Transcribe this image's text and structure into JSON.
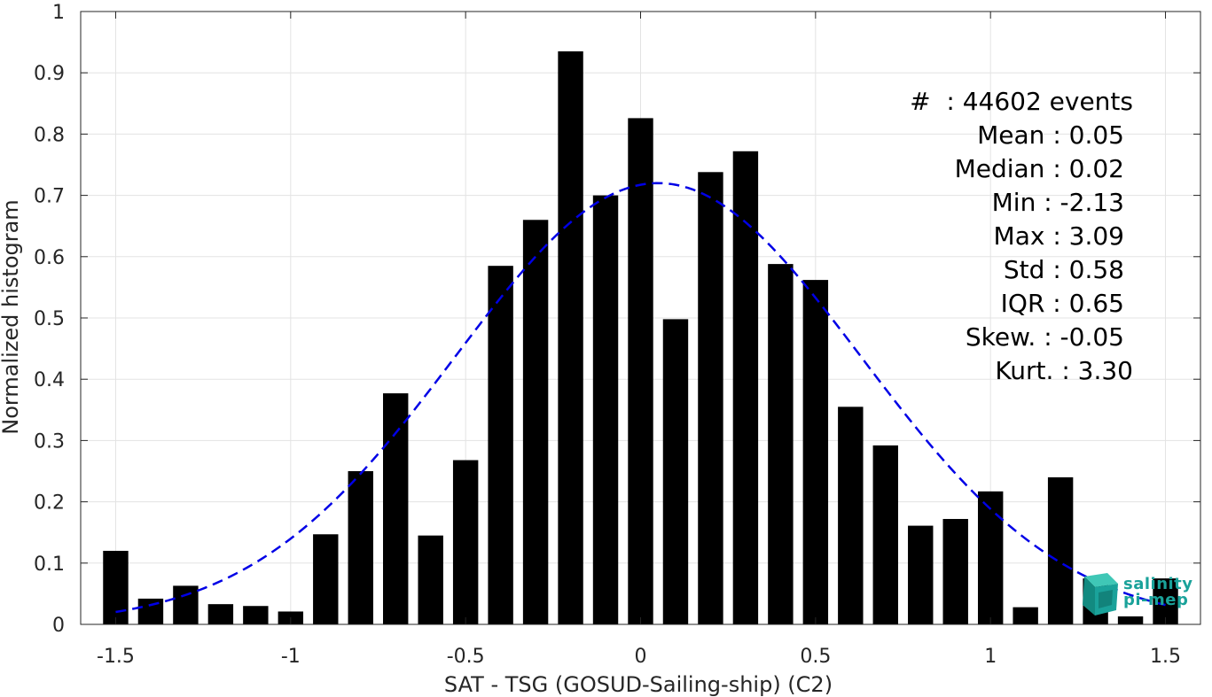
{
  "chart_data": {
    "type": "bar",
    "xlabel": "SAT - TSG (GOSUD-Sailing-ship) (C2)",
    "ylabel": "Normalized histogram",
    "xlim": [
      -1.6,
      1.6
    ],
    "ylim": [
      0,
      1
    ],
    "xticks": [
      -1.5,
      -1,
      -0.5,
      0,
      0.5,
      1,
      1.5
    ],
    "xtick_labels": [
      "-1.5",
      "-1",
      "-0.5",
      "0",
      "0.5",
      "1",
      "1.5"
    ],
    "yticks": [
      0,
      0.1,
      0.2,
      0.3,
      0.4,
      0.5,
      0.6,
      0.7,
      0.8,
      0.9,
      1
    ],
    "ytick_labels": [
      "0",
      "0.1",
      "0.2",
      "0.3",
      "0.4",
      "0.5",
      "0.6",
      "0.7",
      "0.8",
      "0.9",
      "1"
    ],
    "grid": true,
    "bar_color": "#000000",
    "bins": [
      -1.5,
      -1.4,
      -1.3,
      -1.2,
      -1.1,
      -1.0,
      -0.9,
      -0.8,
      -0.7,
      -0.6,
      -0.5,
      -0.4,
      -0.3,
      -0.2,
      -0.1,
      0.0,
      0.1,
      0.2,
      0.3,
      0.4,
      0.5,
      0.6,
      0.7,
      0.8,
      0.9,
      1.0,
      1.1,
      1.2,
      1.3,
      1.4,
      1.5
    ],
    "values": [
      0.12,
      0.042,
      0.063,
      0.033,
      0.03,
      0.021,
      0.147,
      0.25,
      0.377,
      0.145,
      0.268,
      0.585,
      0.66,
      0.935,
      0.7,
      0.826,
      0.498,
      0.738,
      0.772,
      0.588,
      0.562,
      0.355,
      0.292,
      0.161,
      0.172,
      0.217,
      0.028,
      0.24,
      0.075,
      0.013,
      0.075
    ],
    "fit_curve": {
      "style": "dashed",
      "color": "#0000e6",
      "mean": 0.05,
      "std": 0.58,
      "peak": 0.72,
      "x_range": [
        -1.5,
        1.5
      ]
    }
  },
  "stats": [
    {
      "label": "#  : 44602 events"
    },
    {
      "label": "Mean : 0.05"
    },
    {
      "label": "Median : 0.02"
    },
    {
      "label": "Min : -2.13"
    },
    {
      "label": "Max : 3.09"
    },
    {
      "label": "Std : 0.58"
    },
    {
      "label": "IQR : 0.65"
    },
    {
      "label": "Skew. : -0.05"
    },
    {
      "label": "Kurt. : 3.30"
    }
  ],
  "logo": {
    "line1": "salinity",
    "line2": "pi-mep",
    "color": "#1aa29a"
  }
}
